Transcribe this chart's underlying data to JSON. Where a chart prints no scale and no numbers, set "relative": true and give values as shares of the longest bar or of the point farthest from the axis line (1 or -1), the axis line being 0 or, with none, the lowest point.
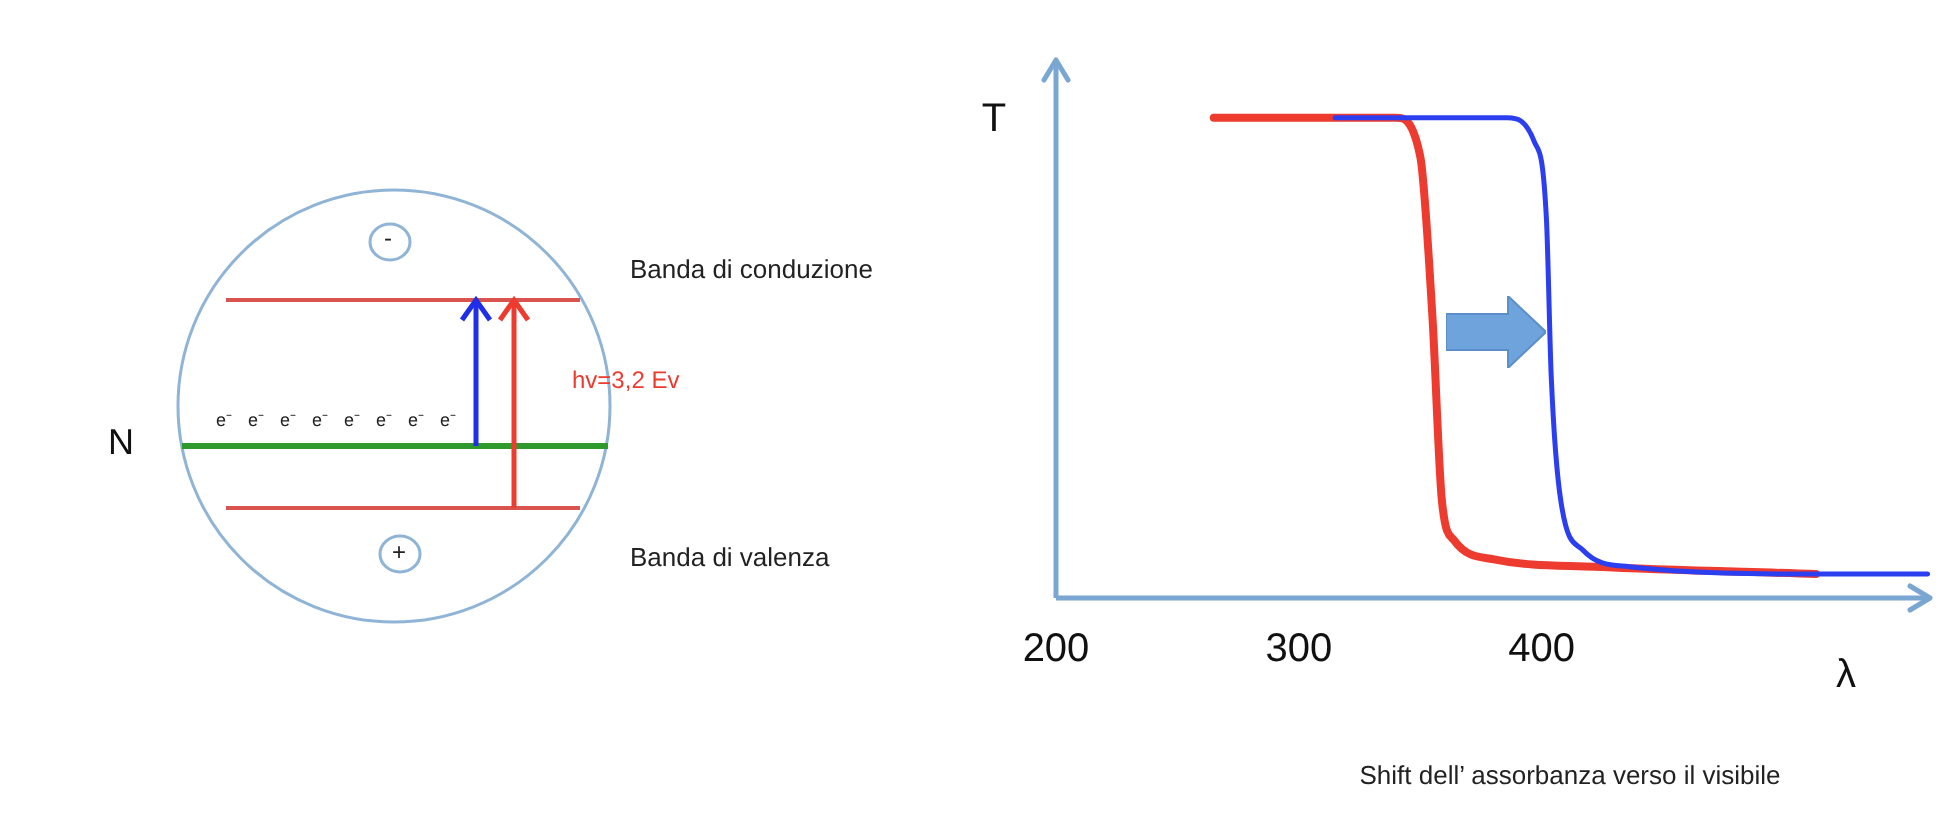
{
  "chart_data": {
    "type": "line",
    "relative": true,
    "ylabel": "T",
    "xlabel": "λ",
    "xlim": [
      200,
      560
    ],
    "xticks": [
      200,
      300,
      400
    ],
    "tick_labels": "x",
    "marker": "none",
    "line_style": "solid",
    "annotations": [
      "Shift dell’ assorbanza verso il visibile",
      "Banda di conduzione",
      "hv=3,2 Ev",
      "Banda di valenza",
      "N",
      "-",
      "+",
      "e⁻",
      "e⁻",
      "e⁻",
      "e⁻",
      "e⁻",
      "e⁻",
      "e⁻",
      "e⁻"
    ],
    "series": [
      {
        "color": "#ee3b2f",
        "x": [
          265,
          340,
          350,
          355,
          359,
          364,
          381,
          422,
          513
        ],
        "values": [
          1,
          1,
          0.92,
          0.59,
          0.2,
          0.12,
          0.08,
          0.065,
          0.05
        ]
      },
      {
        "color": "#2c3ff0",
        "x": [
          315,
          386,
          397,
          402,
          404,
          408,
          417,
          436,
          513,
          559
        ],
        "values": [
          1,
          1,
          0.95,
          0.79,
          0.46,
          0.2,
          0.1,
          0.065,
          0.05,
          0.05
        ]
      }
    ]
  }
}
